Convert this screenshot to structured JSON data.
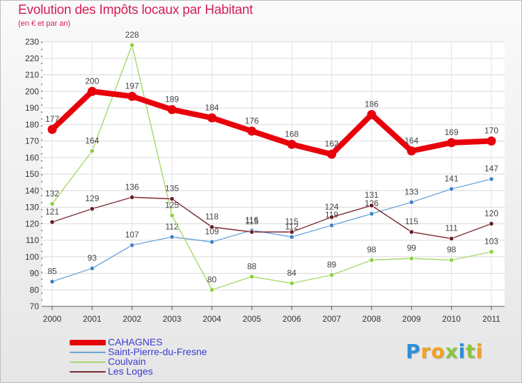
{
  "header": {
    "title": "Evolution des Impôts locaux par Habitant",
    "subtitle": "(en € et par an)"
  },
  "logo": {
    "letters": [
      {
        "ch": "P",
        "color": "#2b8fd8"
      },
      {
        "ch": "r",
        "color": "#f2a21f"
      },
      {
        "ch": "o",
        "color": "#f2a21f"
      },
      {
        "ch": "x",
        "color": "#8cc63f"
      },
      {
        "ch": "i",
        "color": "#2b8fd8"
      },
      {
        "ch": "t",
        "color": "#8cc63f"
      },
      {
        "ch": "i",
        "color": "#f2a21f"
      }
    ]
  },
  "chart_data": {
    "type": "line",
    "x": [
      "2000",
      "2001",
      "2002",
      "2003",
      "2004",
      "2005",
      "2006",
      "2007",
      "2008",
      "2009",
      "2010",
      "2011"
    ],
    "ylim": [
      70,
      230
    ],
    "yticks": [
      70,
      80,
      90,
      100,
      110,
      120,
      130,
      140,
      150,
      160,
      170,
      180,
      190,
      200,
      210,
      220,
      230
    ],
    "grid": true,
    "legend_position": "bottom-left",
    "series": [
      {
        "name": "CAHAGNES",
        "color": "#e8000b",
        "marker": "#e8000b",
        "values": [
          177,
          200,
          197,
          189,
          184,
          176,
          168,
          162,
          186,
          164,
          169,
          170
        ]
      },
      {
        "name": "Saint-Pierre-du-Fresne",
        "color": "#6da3d8",
        "marker": "#3d84c6",
        "values": [
          85,
          93,
          107,
          112,
          109,
          116,
          112,
          119,
          126,
          133,
          141,
          147
        ]
      },
      {
        "name": "Coulvain",
        "color": "#a5d86a",
        "marker": "#8cd13a",
        "values": [
          132,
          164,
          228,
          125,
          80,
          88,
          84,
          89,
          98,
          99,
          98,
          103
        ]
      },
      {
        "name": "Les Loges",
        "color": "#7a2a32",
        "marker": "#6b1a24",
        "values": [
          121,
          129,
          136,
          135,
          118,
          115,
          115,
          124,
          131,
          115,
          111,
          120
        ]
      }
    ]
  }
}
